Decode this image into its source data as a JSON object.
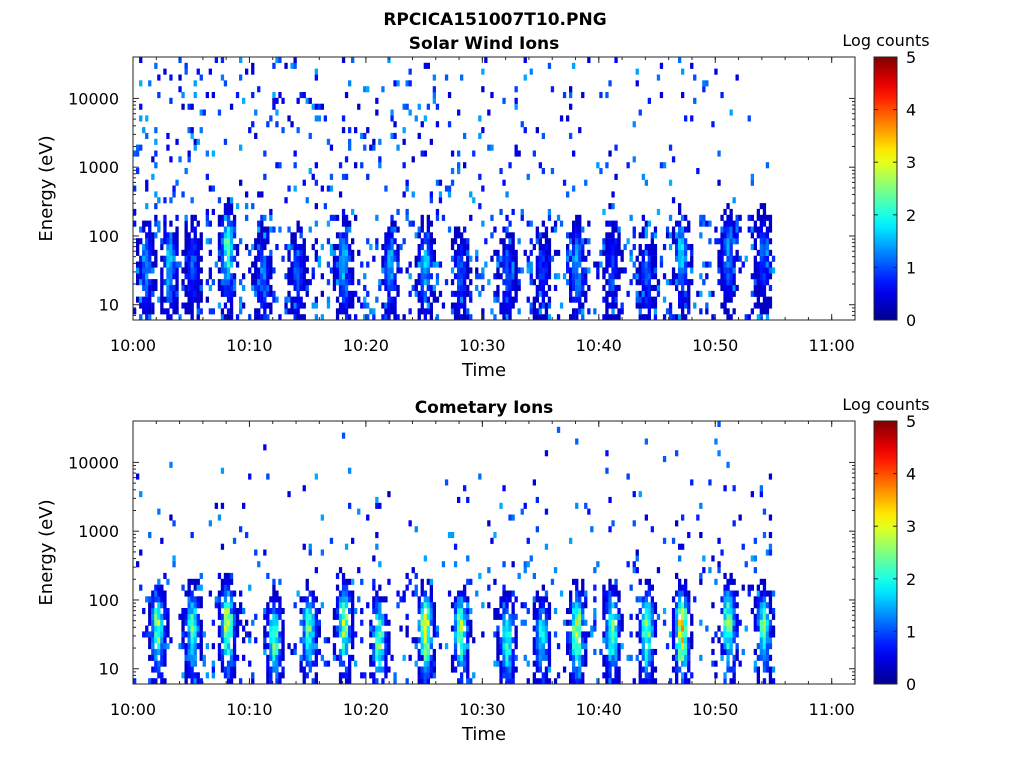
{
  "figure_title": "RPCICA151007T10.PNG",
  "colors": {
    "axis": "#262626",
    "colormap": [
      "#00008f",
      "#0000ff",
      "#0080ff",
      "#00ffff",
      "#80ff80",
      "#ffff00",
      "#ff8000",
      "#ff0000",
      "#800000"
    ]
  },
  "chart_data": [
    {
      "type": "heatmap",
      "title": "Solar Wind Ions",
      "xlabel": "Time",
      "ylabel": "Energy (eV)",
      "x_scale": "time",
      "y_scale": "log",
      "xlim": [
        "10:00",
        "11:02"
      ],
      "ylim": [
        6,
        40000
      ],
      "x_ticks": [
        "10:00",
        "10:10",
        "10:20",
        "10:30",
        "10:40",
        "10:50",
        "11:00"
      ],
      "y_ticks": [
        {
          "value": 10,
          "label": "10"
        },
        {
          "value": 100,
          "label": "100"
        },
        {
          "value": 1000,
          "label": "1000"
        },
        {
          "value": 10000,
          "label": "10000"
        }
      ],
      "data_end_time": "10:55",
      "colorbar": {
        "label": "Log counts",
        "range": [
          0,
          5
        ],
        "ticks": [
          0,
          1,
          2,
          3,
          4,
          5
        ]
      },
      "bursts": [
        {
          "time": "10:01",
          "energy_peak": 40,
          "log_counts_peak": 1.5
        },
        {
          "time": "10:03",
          "energy_peak": 40,
          "log_counts_peak": 1.8
        },
        {
          "time": "10:05",
          "energy_peak": 40,
          "log_counts_peak": 1.2
        },
        {
          "time": "10:08",
          "energy_peak": 70,
          "log_counts_peak": 2.5
        },
        {
          "time": "10:11",
          "energy_peak": 30,
          "log_counts_peak": 1.3
        },
        {
          "time": "10:14",
          "energy_peak": 30,
          "log_counts_peak": 1.2
        },
        {
          "time": "10:18",
          "energy_peak": 40,
          "log_counts_peak": 1.8
        },
        {
          "time": "10:22",
          "energy_peak": 40,
          "log_counts_peak": 1.6
        },
        {
          "time": "10:25",
          "energy_peak": 40,
          "log_counts_peak": 1.8
        },
        {
          "time": "10:28",
          "energy_peak": 30,
          "log_counts_peak": 1.2
        },
        {
          "time": "10:32",
          "energy_peak": 30,
          "log_counts_peak": 1.2
        },
        {
          "time": "10:35",
          "energy_peak": 30,
          "log_counts_peak": 1.0
        },
        {
          "time": "10:38",
          "energy_peak": 40,
          "log_counts_peak": 1.7
        },
        {
          "time": "10:41",
          "energy_peak": 40,
          "log_counts_peak": 1.0
        },
        {
          "time": "10:44",
          "energy_peak": 30,
          "log_counts_peak": 1.2
        },
        {
          "time": "10:47",
          "energy_peak": 60,
          "log_counts_peak": 2.0
        },
        {
          "time": "10:51",
          "energy_peak": 60,
          "log_counts_peak": 1.5
        },
        {
          "time": "10:54",
          "energy_peak": 60,
          "log_counts_peak": 1.2
        }
      ]
    },
    {
      "type": "heatmap",
      "title": "Cometary Ions",
      "xlabel": "Time",
      "ylabel": "Energy (eV)",
      "x_scale": "time",
      "y_scale": "log",
      "xlim": [
        "10:00",
        "11:02"
      ],
      "ylim": [
        6,
        40000
      ],
      "x_ticks": [
        "10:00",
        "10:10",
        "10:20",
        "10:30",
        "10:40",
        "10:50",
        "11:00"
      ],
      "y_ticks": [
        {
          "value": 10,
          "label": "10"
        },
        {
          "value": 100,
          "label": "100"
        },
        {
          "value": 1000,
          "label": "1000"
        },
        {
          "value": 10000,
          "label": "10000"
        }
      ],
      "data_end_time": "10:55",
      "colorbar": {
        "label": "Log counts",
        "range": [
          0,
          5
        ],
        "ticks": [
          0,
          1,
          2,
          3,
          4,
          5
        ]
      },
      "bursts": [
        {
          "time": "10:02",
          "energy_peak": 40,
          "log_counts_peak": 2.8
        },
        {
          "time": "10:05",
          "energy_peak": 40,
          "log_counts_peak": 2.5
        },
        {
          "time": "10:08",
          "energy_peak": 50,
          "log_counts_peak": 3.2
        },
        {
          "time": "10:12",
          "energy_peak": 30,
          "log_counts_peak": 2.6
        },
        {
          "time": "10:15",
          "energy_peak": 40,
          "log_counts_peak": 2.6
        },
        {
          "time": "10:18",
          "energy_peak": 50,
          "log_counts_peak": 3.0
        },
        {
          "time": "10:21",
          "energy_peak": 30,
          "log_counts_peak": 2.7
        },
        {
          "time": "10:25",
          "energy_peak": 40,
          "log_counts_peak": 3.4
        },
        {
          "time": "10:28",
          "energy_peak": 40,
          "log_counts_peak": 3.0
        },
        {
          "time": "10:32",
          "energy_peak": 30,
          "log_counts_peak": 2.4
        },
        {
          "time": "10:35",
          "energy_peak": 30,
          "log_counts_peak": 2.2
        },
        {
          "time": "10:38",
          "energy_peak": 40,
          "log_counts_peak": 3.2
        },
        {
          "time": "10:41",
          "energy_peak": 40,
          "log_counts_peak": 2.6
        },
        {
          "time": "10:44",
          "energy_peak": 40,
          "log_counts_peak": 3.0
        },
        {
          "time": "10:47",
          "energy_peak": 40,
          "log_counts_peak": 3.8
        },
        {
          "time": "10:51",
          "energy_peak": 50,
          "log_counts_peak": 2.8
        },
        {
          "time": "10:54",
          "energy_peak": 40,
          "log_counts_peak": 2.5
        }
      ]
    }
  ]
}
